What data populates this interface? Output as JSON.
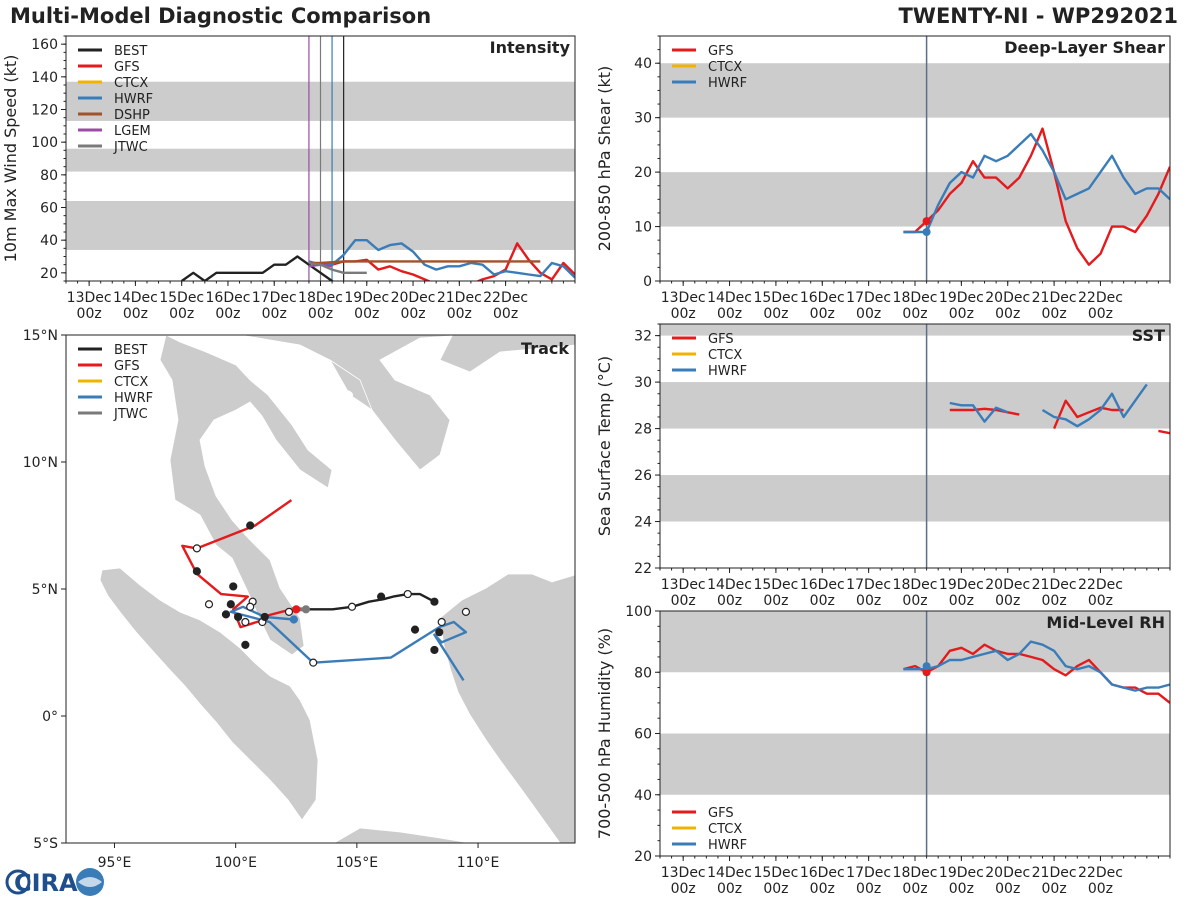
{
  "header": {
    "title": "Multi-Model Diagnostic Comparison",
    "storm": "TWENTY-NI - WP292021"
  },
  "logo": {
    "text": "CIRA"
  },
  "colors": {
    "BEST": "#222222",
    "GFS": "#e41a1c",
    "CTCX": "#f0b400",
    "HWRF": "#3a7cb8",
    "DSHP": "#a0522d",
    "LGEM": "#984ea3",
    "JTWC": "#7a7a7a",
    "band": "#cccccc",
    "land": "#cccccc",
    "vline": "#5a7088"
  },
  "time_ticks": [
    "13Dec\n00z",
    "14Dec\n00z",
    "15Dec\n00z",
    "16Dec\n00z",
    "17Dec\n00z",
    "18Dec\n00z",
    "19Dec\n00z",
    "20Dec\n00z",
    "21Dec\n00z",
    "22Dec\n00z"
  ],
  "chart_data": [
    {
      "id": "intensity",
      "type": "line",
      "title": "Intensity",
      "ylabel": "10m Max Wind Speed (kt)",
      "xlabel": "",
      "xlim": [
        -0.5,
        10.5
      ],
      "ylim": [
        15,
        165
      ],
      "yticks": [
        20,
        40,
        60,
        80,
        100,
        120,
        140,
        160
      ],
      "bands": [
        [
          34,
          64
        ],
        [
          82,
          96
        ],
        [
          113,
          137
        ]
      ],
      "vlines": [
        {
          "x": 4.75,
          "color": "LGEM"
        },
        {
          "x": 5.0,
          "color": "JTWC"
        },
        {
          "x": 5.25,
          "color": "HWRF"
        },
        {
          "x": 5.5,
          "color": "BEST"
        }
      ],
      "legend": [
        "BEST",
        "GFS",
        "CTCX",
        "HWRF",
        "DSHP",
        "LGEM",
        "JTWC"
      ],
      "series": [
        {
          "name": "BEST",
          "x": [
            2.0,
            2.25,
            2.5,
            2.75,
            3.0,
            3.25,
            3.5,
            3.75,
            4.0,
            4.25,
            4.5,
            4.75,
            5.0,
            5.25,
            5.5
          ],
          "y": [
            15,
            20,
            15,
            20,
            20,
            20,
            20,
            20,
            25,
            25,
            30,
            25,
            20,
            15,
            10
          ]
        },
        {
          "name": "GFS",
          "x": [
            4.75,
            5.0,
            5.25,
            5.5,
            5.75,
            6.0,
            6.25,
            6.5,
            6.75,
            7.0,
            7.25,
            7.5,
            7.75,
            8.0,
            8.25,
            8.5,
            8.75,
            9.0,
            9.25,
            9.5,
            9.75,
            10.0,
            10.25,
            10.5
          ],
          "y": [
            26,
            25,
            25,
            27,
            27,
            28,
            22,
            24,
            21,
            19,
            16,
            13,
            11,
            12,
            13,
            16,
            18,
            22,
            38,
            28,
            20,
            16,
            26,
            19
          ]
        },
        {
          "name": "HWRF",
          "x": [
            4.75,
            5.0,
            5.25,
            5.5,
            5.75,
            6.0,
            6.25,
            6.5,
            6.75,
            7.0,
            7.25,
            7.5,
            7.75,
            8.0,
            8.25,
            8.5,
            8.75,
            9.0,
            9.25,
            9.5,
            9.75,
            10.0,
            10.25,
            10.5
          ],
          "y": [
            27,
            25,
            25,
            31,
            40,
            40,
            34,
            37,
            38,
            33,
            25,
            22,
            24,
            24,
            26,
            25,
            19,
            21,
            20,
            19,
            18,
            26,
            24,
            17
          ]
        },
        {
          "name": "DSHP",
          "x": [
            4.75,
            5.0,
            5.5,
            6.0,
            6.5,
            7.0,
            7.5,
            8.0,
            8.5,
            9.0,
            9.5,
            9.75
          ],
          "y": [
            26,
            26,
            27,
            27,
            27,
            27,
            27,
            27,
            27,
            27,
            27,
            27
          ]
        },
        {
          "name": "LGEM",
          "x": [
            4.75,
            5.0,
            5.25
          ],
          "y": [
            24,
            25,
            24
          ]
        },
        {
          "name": "JTWC",
          "x": [
            4.75,
            5.0,
            5.25,
            5.5,
            6.0
          ],
          "y": [
            26,
            25,
            22,
            20,
            20
          ]
        }
      ]
    },
    {
      "id": "shear",
      "type": "line",
      "title": "Deep-Layer Shear",
      "ylabel": "200-850 hPa Shear (kt)",
      "xlabel": "",
      "xlim": [
        -0.5,
        10.5
      ],
      "ylim": [
        0,
        45
      ],
      "yticks": [
        0,
        10,
        20,
        30,
        40
      ],
      "bands": [
        [
          10,
          20
        ],
        [
          30,
          40
        ]
      ],
      "vlines": [
        {
          "x": 5.25,
          "color": "vline"
        }
      ],
      "legend": [
        "GFS",
        "CTCX",
        "HWRF"
      ],
      "series": [
        {
          "name": "GFS",
          "x": [
            4.75,
            5.0,
            5.25,
            5.5,
            5.75,
            6.0,
            6.25,
            6.5,
            6.75,
            7.0,
            7.25,
            7.5,
            7.75,
            8.0,
            8.25,
            8.5,
            8.75,
            9.0,
            9.25,
            9.5,
            9.75,
            10.0,
            10.25,
            10.5
          ],
          "y": [
            9,
            9,
            11,
            13,
            16,
            18,
            22,
            19,
            19,
            17,
            19,
            23,
            28,
            20,
            11,
            6,
            3,
            5,
            10,
            10,
            9,
            12,
            16,
            21
          ]
        },
        {
          "name": "HWRF",
          "x": [
            4.75,
            5.0,
            5.25,
            5.5,
            5.75,
            6.0,
            6.25,
            6.5,
            6.75,
            7.0,
            7.25,
            7.5,
            7.75,
            8.0,
            8.25,
            8.5,
            8.75,
            9.0,
            9.25,
            9.5,
            9.75,
            10.0,
            10.25,
            10.5
          ],
          "y": [
            9,
            9,
            9,
            14,
            18,
            20,
            19,
            23,
            22,
            23,
            25,
            27,
            24,
            20,
            15,
            16,
            17,
            20,
            23,
            19,
            16,
            17,
            17,
            15
          ]
        }
      ],
      "markers": [
        {
          "series": "GFS",
          "x": 5.25,
          "y": 11
        },
        {
          "series": "HWRF",
          "x": 5.25,
          "y": 9
        }
      ]
    },
    {
      "id": "sst",
      "type": "line",
      "title": "SST",
      "ylabel": "Sea Surface Temp (°C)",
      "xlabel": "",
      "xlim": [
        -0.5,
        10.5
      ],
      "ylim": [
        22,
        32.5
      ],
      "yticks": [
        22,
        24,
        26,
        28,
        30,
        32
      ],
      "bands": [
        [
          24,
          26
        ],
        [
          28,
          30
        ],
        [
          32,
          32.5
        ]
      ],
      "vlines": [
        {
          "x": 5.25,
          "color": "vline"
        }
      ],
      "legend": [
        "GFS",
        "CTCX",
        "HWRF"
      ],
      "series": [
        {
          "name": "GFS",
          "segments": [
            {
              "x": [
                5.75,
                6.0,
                6.25,
                6.5,
                6.75,
                7.0,
                7.25
              ],
              "y": [
                28.8,
                28.8,
                28.8,
                28.85,
                28.8,
                28.7,
                28.6
              ]
            },
            {
              "x": [
                8.0,
                8.25,
                8.5,
                8.75,
                9.0,
                9.25,
                9.5
              ],
              "y": [
                28.0,
                29.2,
                28.5,
                28.7,
                28.9,
                28.8,
                28.8
              ]
            },
            {
              "x": [
                10.25,
                10.5
              ],
              "y": [
                27.9,
                27.8
              ]
            }
          ]
        },
        {
          "name": "HWRF",
          "segments": [
            {
              "x": [
                5.75,
                6.0,
                6.25,
                6.5,
                6.75,
                7.0
              ],
              "y": [
                29.1,
                29.0,
                29.0,
                28.3,
                28.9,
                28.7
              ]
            },
            {
              "x": [
                7.75,
                8.0,
                8.25,
                8.5,
                8.75,
                9.0,
                9.25,
                9.5,
                9.75,
                10.0
              ],
              "y": [
                28.8,
                28.5,
                28.4,
                28.1,
                28.4,
                28.8,
                29.5,
                28.5,
                29.2,
                29.9
              ]
            }
          ]
        }
      ]
    },
    {
      "id": "rh",
      "type": "line",
      "title": "Mid-Level RH",
      "ylabel": "700-500 hPa Humidity (%)",
      "xlabel": "",
      "xlim": [
        -0.5,
        10.5
      ],
      "ylim": [
        20,
        100
      ],
      "yticks": [
        20,
        40,
        60,
        80,
        100
      ],
      "bands": [
        [
          40,
          60
        ],
        [
          80,
          100
        ]
      ],
      "vlines": [
        {
          "x": 5.25,
          "color": "vline"
        }
      ],
      "legend": [
        "GFS",
        "CTCX",
        "HWRF"
      ],
      "series": [
        {
          "name": "GFS",
          "x": [
            4.75,
            5.0,
            5.25,
            5.5,
            5.75,
            6.0,
            6.25,
            6.5,
            6.75,
            7.0,
            7.25,
            7.5,
            7.75,
            8.0,
            8.25,
            8.5,
            8.75,
            9.0,
            9.25,
            9.5,
            9.75,
            10.0,
            10.25,
            10.5
          ],
          "y": [
            81,
            82,
            80,
            82,
            87,
            88,
            86,
            89,
            87,
            86,
            86,
            85,
            84,
            81,
            79,
            82,
            84,
            80,
            76,
            75,
            75,
            73,
            73,
            70
          ]
        },
        {
          "name": "HWRF",
          "x": [
            4.75,
            5.0,
            5.25,
            5.5,
            5.75,
            6.0,
            6.25,
            6.5,
            6.75,
            7.0,
            7.25,
            7.5,
            7.75,
            8.0,
            8.25,
            8.5,
            8.75,
            9.0,
            9.25,
            9.5,
            9.75,
            10.0,
            10.25,
            10.5
          ],
          "y": [
            81,
            81,
            81,
            82,
            84,
            84,
            85,
            86,
            87,
            84,
            86,
            90,
            89,
            87,
            82,
            81,
            82,
            80,
            76,
            75,
            74,
            75,
            75,
            76
          ]
        }
      ],
      "markers": [
        {
          "series": "GFS",
          "x": 5.25,
          "y": 80
        },
        {
          "series": "HWRF",
          "x": 5.25,
          "y": 82
        }
      ]
    },
    {
      "id": "track",
      "type": "scatter",
      "title": "Track",
      "xlim": [
        93.0,
        114.0
      ],
      "ylim": [
        -5.0,
        15.0
      ],
      "xticks": [
        95,
        100,
        105,
        110
      ],
      "xticklabels": [
        "95°E",
        "100°E",
        "105°E",
        "110°E"
      ],
      "yticks": [
        -5,
        0,
        5,
        10,
        15
      ],
      "yticklabels": [
        "5°S",
        "0°",
        "5°N",
        "10°N",
        "15°N"
      ],
      "legend": [
        "BEST",
        "GFS",
        "CTCX",
        "HWRF",
        "JTWC"
      ],
      "tracks": [
        {
          "name": "BEST",
          "lon": [
            102.6,
            103.0,
            103.5,
            104.0,
            104.8,
            105.5,
            106.1,
            106.5,
            107.1,
            107.6,
            108.2
          ],
          "lat": [
            4.2,
            4.2,
            4.2,
            4.2,
            4.3,
            4.5,
            4.6,
            4.7,
            4.8,
            4.8,
            4.5
          ]
        },
        {
          "name": "GFS",
          "lon": [
            102.3,
            100.8,
            98.4,
            97.8,
            98.4,
            99.4,
            100.5,
            99.9,
            100.2,
            101.2,
            101.1,
            102.3
          ],
          "lat": [
            8.5,
            7.5,
            6.6,
            6.7,
            5.6,
            4.8,
            4.7,
            4.2,
            3.5,
            3.8,
            3.9,
            4.2
          ]
        },
        {
          "name": "HWRF",
          "lon": [
            102.4,
            101.2,
            100.3,
            99.8,
            100.6,
            101.4,
            103.2,
            106.4,
            108.4,
            109.0,
            109.5,
            108.5,
            108.2,
            109.4
          ],
          "lat": [
            3.8,
            3.9,
            4.3,
            4.1,
            3.9,
            3.7,
            2.1,
            2.3,
            3.5,
            3.7,
            3.3,
            2.9,
            3.2,
            1.4
          ]
        },
        {
          "name": "JTWC",
          "lon": [
            102.3,
            102.9
          ],
          "lat": [
            4.2,
            4.2
          ]
        }
      ],
      "points": [
        {
          "lon": 100.6,
          "lat": 7.5,
          "style": "filled"
        },
        {
          "lon": 98.4,
          "lat": 6.6,
          "style": "open"
        },
        {
          "lon": 98.4,
          "lat": 5.7,
          "style": "filled"
        },
        {
          "lon": 99.9,
          "lat": 5.1,
          "style": "filled"
        },
        {
          "lon": 98.9,
          "lat": 4.4,
          "style": "open"
        },
        {
          "lon": 99.8,
          "lat": 4.4,
          "style": "filled"
        },
        {
          "lon": 100.7,
          "lat": 4.5,
          "style": "open"
        },
        {
          "lon": 100.6,
          "lat": 4.3,
          "style": "open"
        },
        {
          "lon": 99.6,
          "lat": 4.0,
          "style": "filled"
        },
        {
          "lon": 100.1,
          "lat": 3.9,
          "style": "filled"
        },
        {
          "lon": 100.4,
          "lat": 3.7,
          "style": "open"
        },
        {
          "lon": 101.1,
          "lat": 3.7,
          "style": "open"
        },
        {
          "lon": 101.2,
          "lat": 3.9,
          "style": "filled"
        },
        {
          "lon": 100.4,
          "lat": 2.8,
          "style": "filled"
        },
        {
          "lon": 102.2,
          "lat": 4.1,
          "style": "open"
        },
        {
          "lon": 102.5,
          "lat": 4.2,
          "style": "filled-red"
        },
        {
          "lon": 102.9,
          "lat": 4.2,
          "style": "filled-gray"
        },
        {
          "lon": 102.4,
          "lat": 3.8,
          "style": "filled-blue"
        },
        {
          "lon": 104.8,
          "lat": 4.3,
          "style": "open"
        },
        {
          "lon": 106.0,
          "lat": 4.7,
          "style": "filled"
        },
        {
          "lon": 107.1,
          "lat": 4.8,
          "style": "open"
        },
        {
          "lon": 108.2,
          "lat": 4.5,
          "style": "filled"
        },
        {
          "lon": 103.2,
          "lat": 2.1,
          "style": "open"
        },
        {
          "lon": 107.4,
          "lat": 3.4,
          "style": "filled"
        },
        {
          "lon": 108.4,
          "lat": 3.3,
          "style": "filled"
        },
        {
          "lon": 108.5,
          "lat": 3.7,
          "style": "open"
        },
        {
          "lon": 109.5,
          "lat": 4.1,
          "style": "open"
        },
        {
          "lon": 108.2,
          "lat": 2.6,
          "style": "filled"
        }
      ]
    }
  ]
}
